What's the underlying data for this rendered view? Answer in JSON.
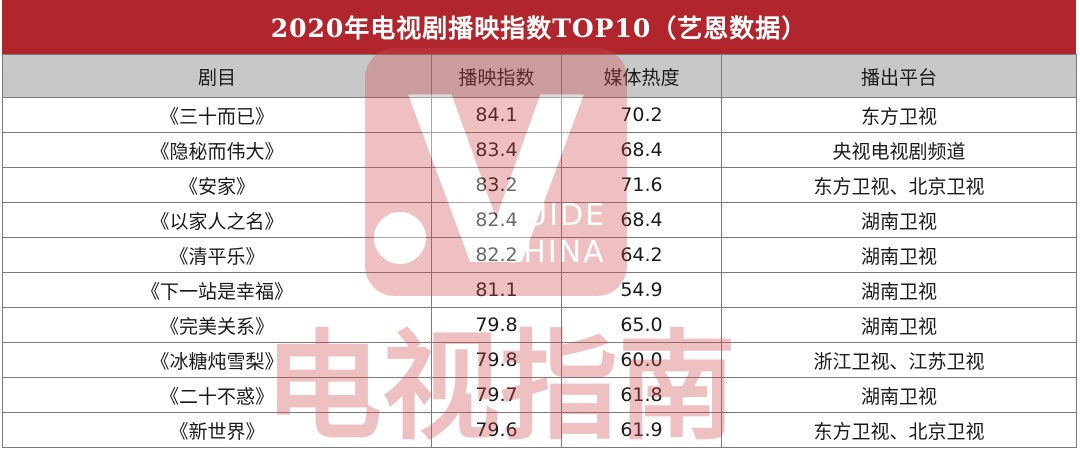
{
  "title": "2020年电视剧播映指数TOP10（艺恩数据）",
  "columns": [
    "剧目",
    "播映指数",
    "媒体热度",
    "播出平台"
  ],
  "rows": [
    {
      "name": "《三十而已》",
      "index": "84.1",
      "heat": "70.2",
      "platform": "东方卫视"
    },
    {
      "name": "《隐秘而伟大》",
      "index": "83.4",
      "heat": "68.4",
      "platform": "央视电视剧频道"
    },
    {
      "name": "《安家》",
      "index": "83.2",
      "heat": "71.6",
      "platform": "东方卫视、北京卫视"
    },
    {
      "name": "《以家人之名》",
      "index": "82.4",
      "heat": "68.4",
      "platform": "湖南卫视"
    },
    {
      "name": "《清平乐》",
      "index": "82.2",
      "heat": "64.2",
      "platform": "湖南卫视"
    },
    {
      "name": "《下一站是幸福》",
      "index": "81.1",
      "heat": "54.9",
      "platform": "湖南卫视"
    },
    {
      "name": "《完美关系》",
      "index": "79.8",
      "heat": "65.0",
      "platform": "湖南卫视"
    },
    {
      "name": "《冰糖炖雪梨》",
      "index": "79.8",
      "heat": "60.0",
      "platform": "浙江卫视、江苏卫视"
    },
    {
      "name": "《二十不惑》",
      "index": "79.7",
      "heat": "61.8",
      "platform": "湖南卫视"
    },
    {
      "name": "《新世界》",
      "index": "79.6",
      "heat": "61.9",
      "platform": "东方卫视、北京卫视"
    }
  ],
  "watermark": {
    "letter": "V",
    "guide_text": "GUIDE",
    "china_text": "CHINA",
    "brand_text": "电视指南",
    "color": "#d24a4f"
  },
  "colors": {
    "title_bg": "#b0262c",
    "header_bg": "#c8c8c8",
    "border": "#7a7a7a"
  }
}
